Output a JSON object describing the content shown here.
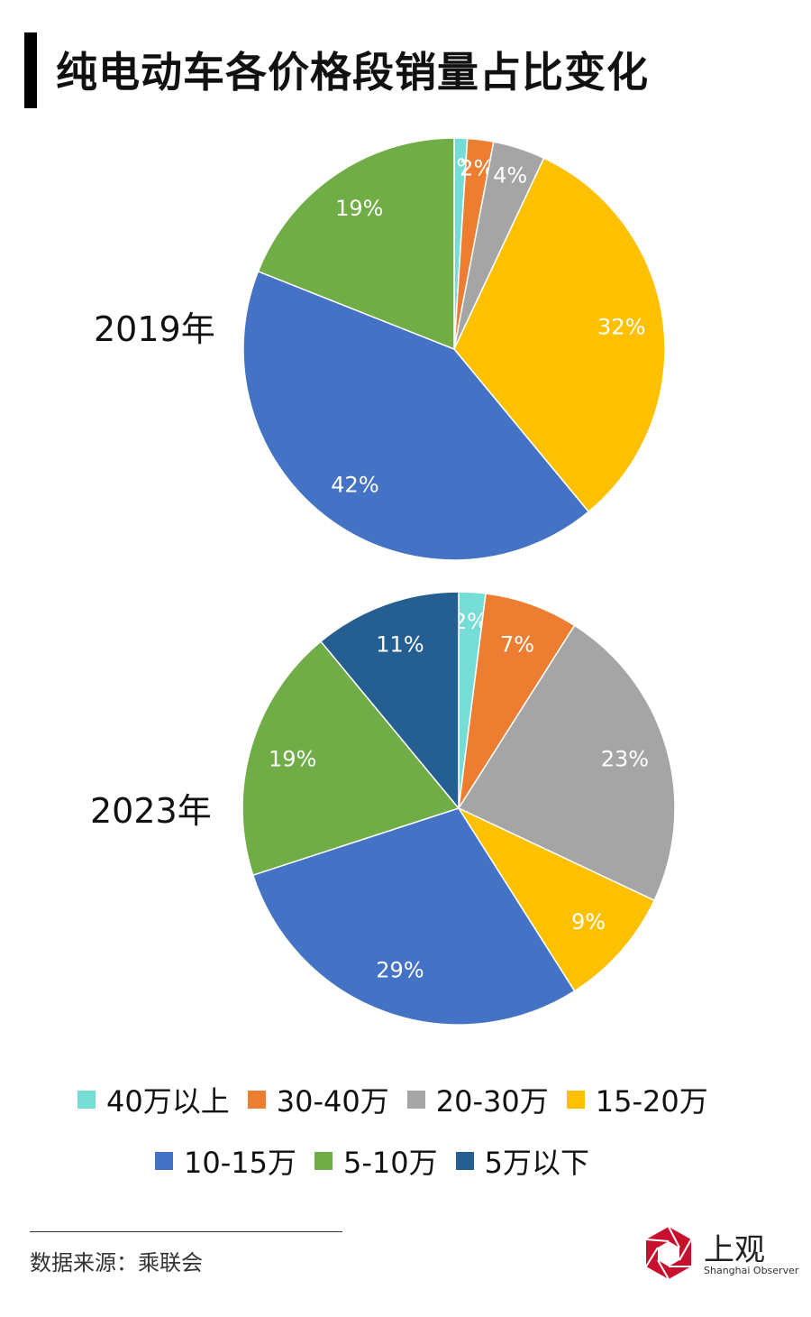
{
  "title": "纯电动车各价格段销量占比变化",
  "chart_data": {
    "type": "pie",
    "categories": [
      "40万以上",
      "30-40万",
      "20-30万",
      "15-20万",
      "10-15万",
      "5-10万",
      "5万以下"
    ],
    "colors": [
      "#75DDD6",
      "#ED7D31",
      "#A5A5A5",
      "#FFC000",
      "#4472C4",
      "#70AD47",
      "#255E91"
    ],
    "series": [
      {
        "name": "2019年",
        "values": [
          1,
          2,
          4,
          32,
          42,
          19,
          0
        ],
        "labels": [
          "1%",
          "2%",
          "4%",
          "32%",
          "42%",
          "19%",
          ""
        ]
      },
      {
        "name": "2023年",
        "values": [
          2,
          7,
          23,
          9,
          29,
          19,
          11
        ],
        "labels": [
          "2%",
          "7%",
          "23%",
          "9%",
          "29%",
          "19%",
          "11%"
        ]
      }
    ],
    "legend_position": "bottom"
  },
  "footer": {
    "source": "数据来源：乘联会"
  },
  "logo": {
    "name": "上观",
    "subtitle": "Shanghai Observer",
    "icon": "shutter-logo-icon",
    "color": "#C8102E"
  }
}
